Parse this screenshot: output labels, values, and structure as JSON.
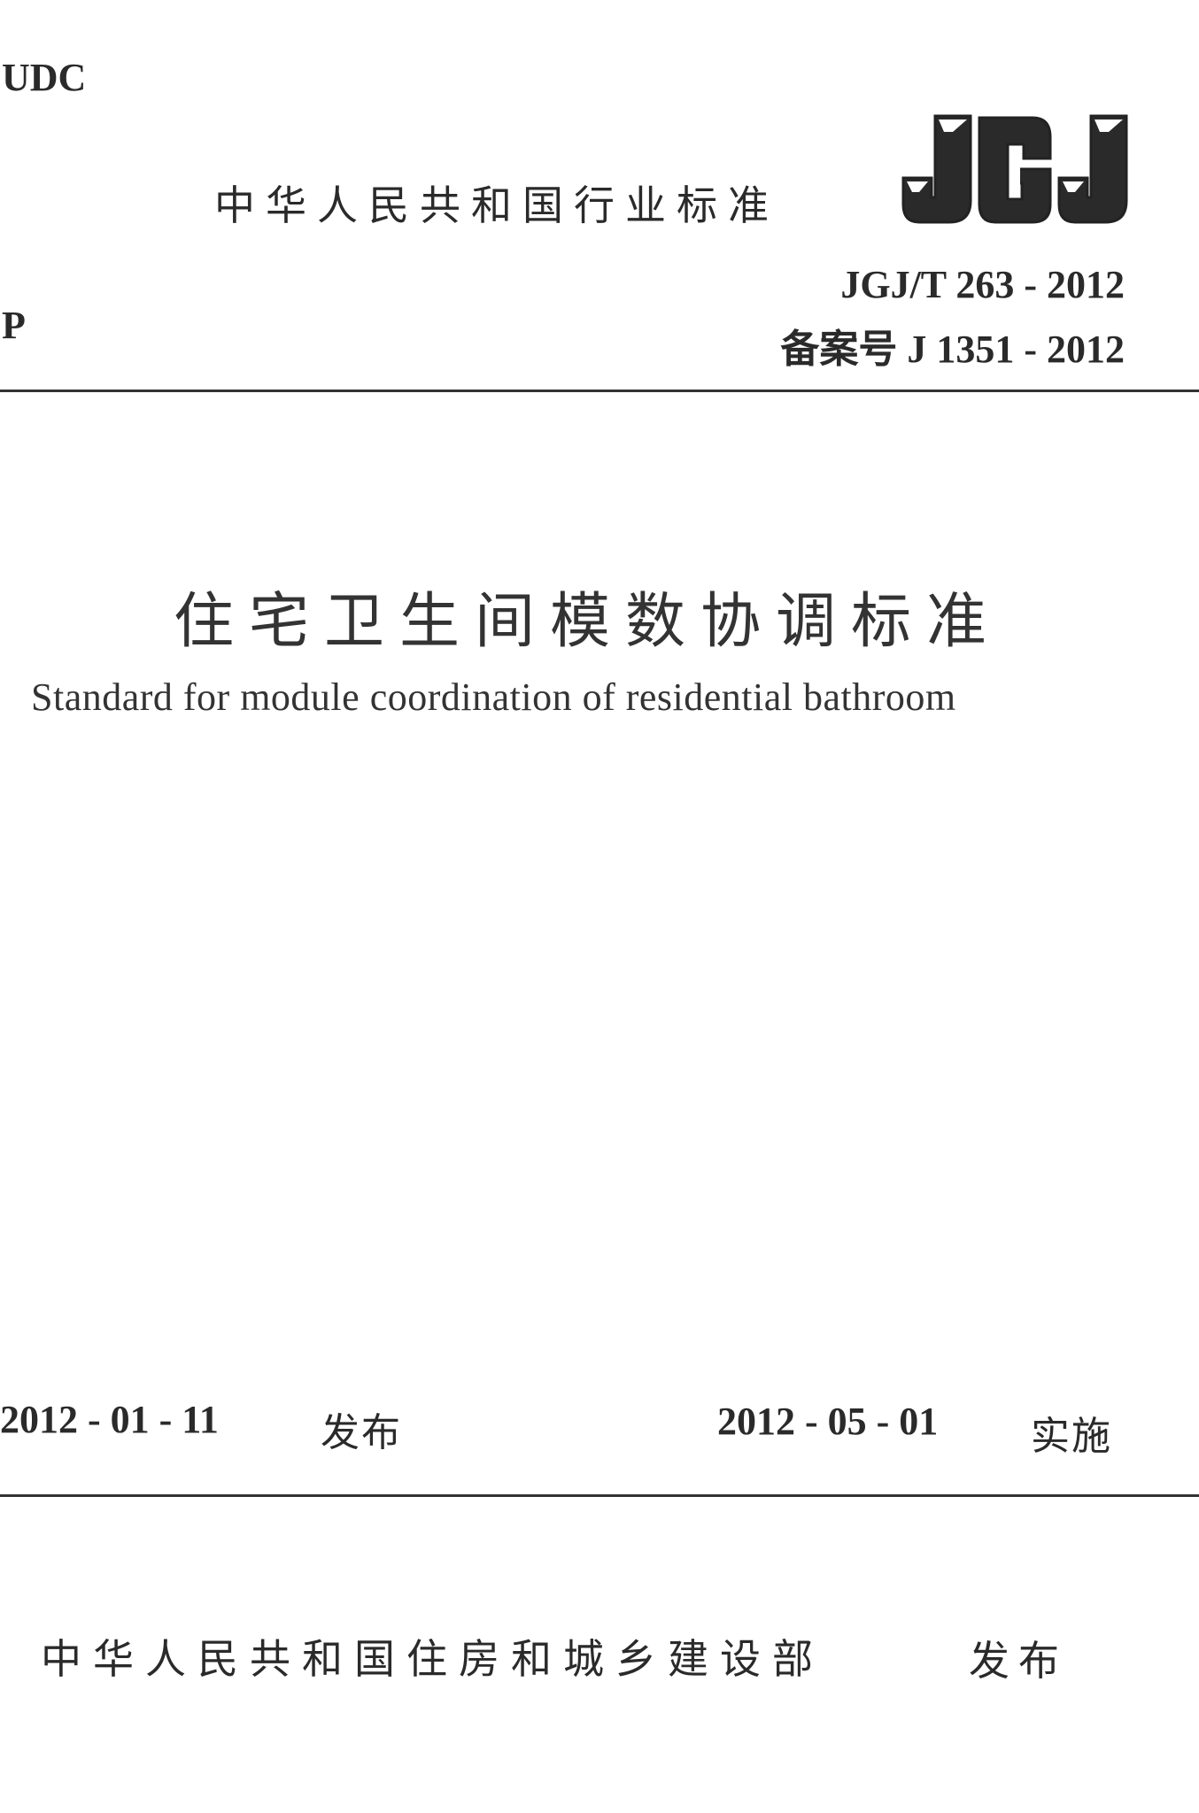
{
  "header": {
    "udc": "UDC",
    "category": "P",
    "standard_type": "中华人民共和国行业标准",
    "logo_text": "JGJ",
    "code": "JGJ/T 263 - 2012",
    "filing_number": "备案号 J 1351 - 2012"
  },
  "title": {
    "chinese": "住宅卫生间模数协调标准",
    "english": "Standard for module coordination of residential bathroom"
  },
  "dates": {
    "issue_date": "2012 - 01 - 11",
    "issue_label": "发布",
    "effective_date": "2012 - 05 - 01",
    "effective_label": "实施"
  },
  "footer": {
    "publisher": "中华人民共和国住房和城乡建设部",
    "publish_label": "发布"
  }
}
